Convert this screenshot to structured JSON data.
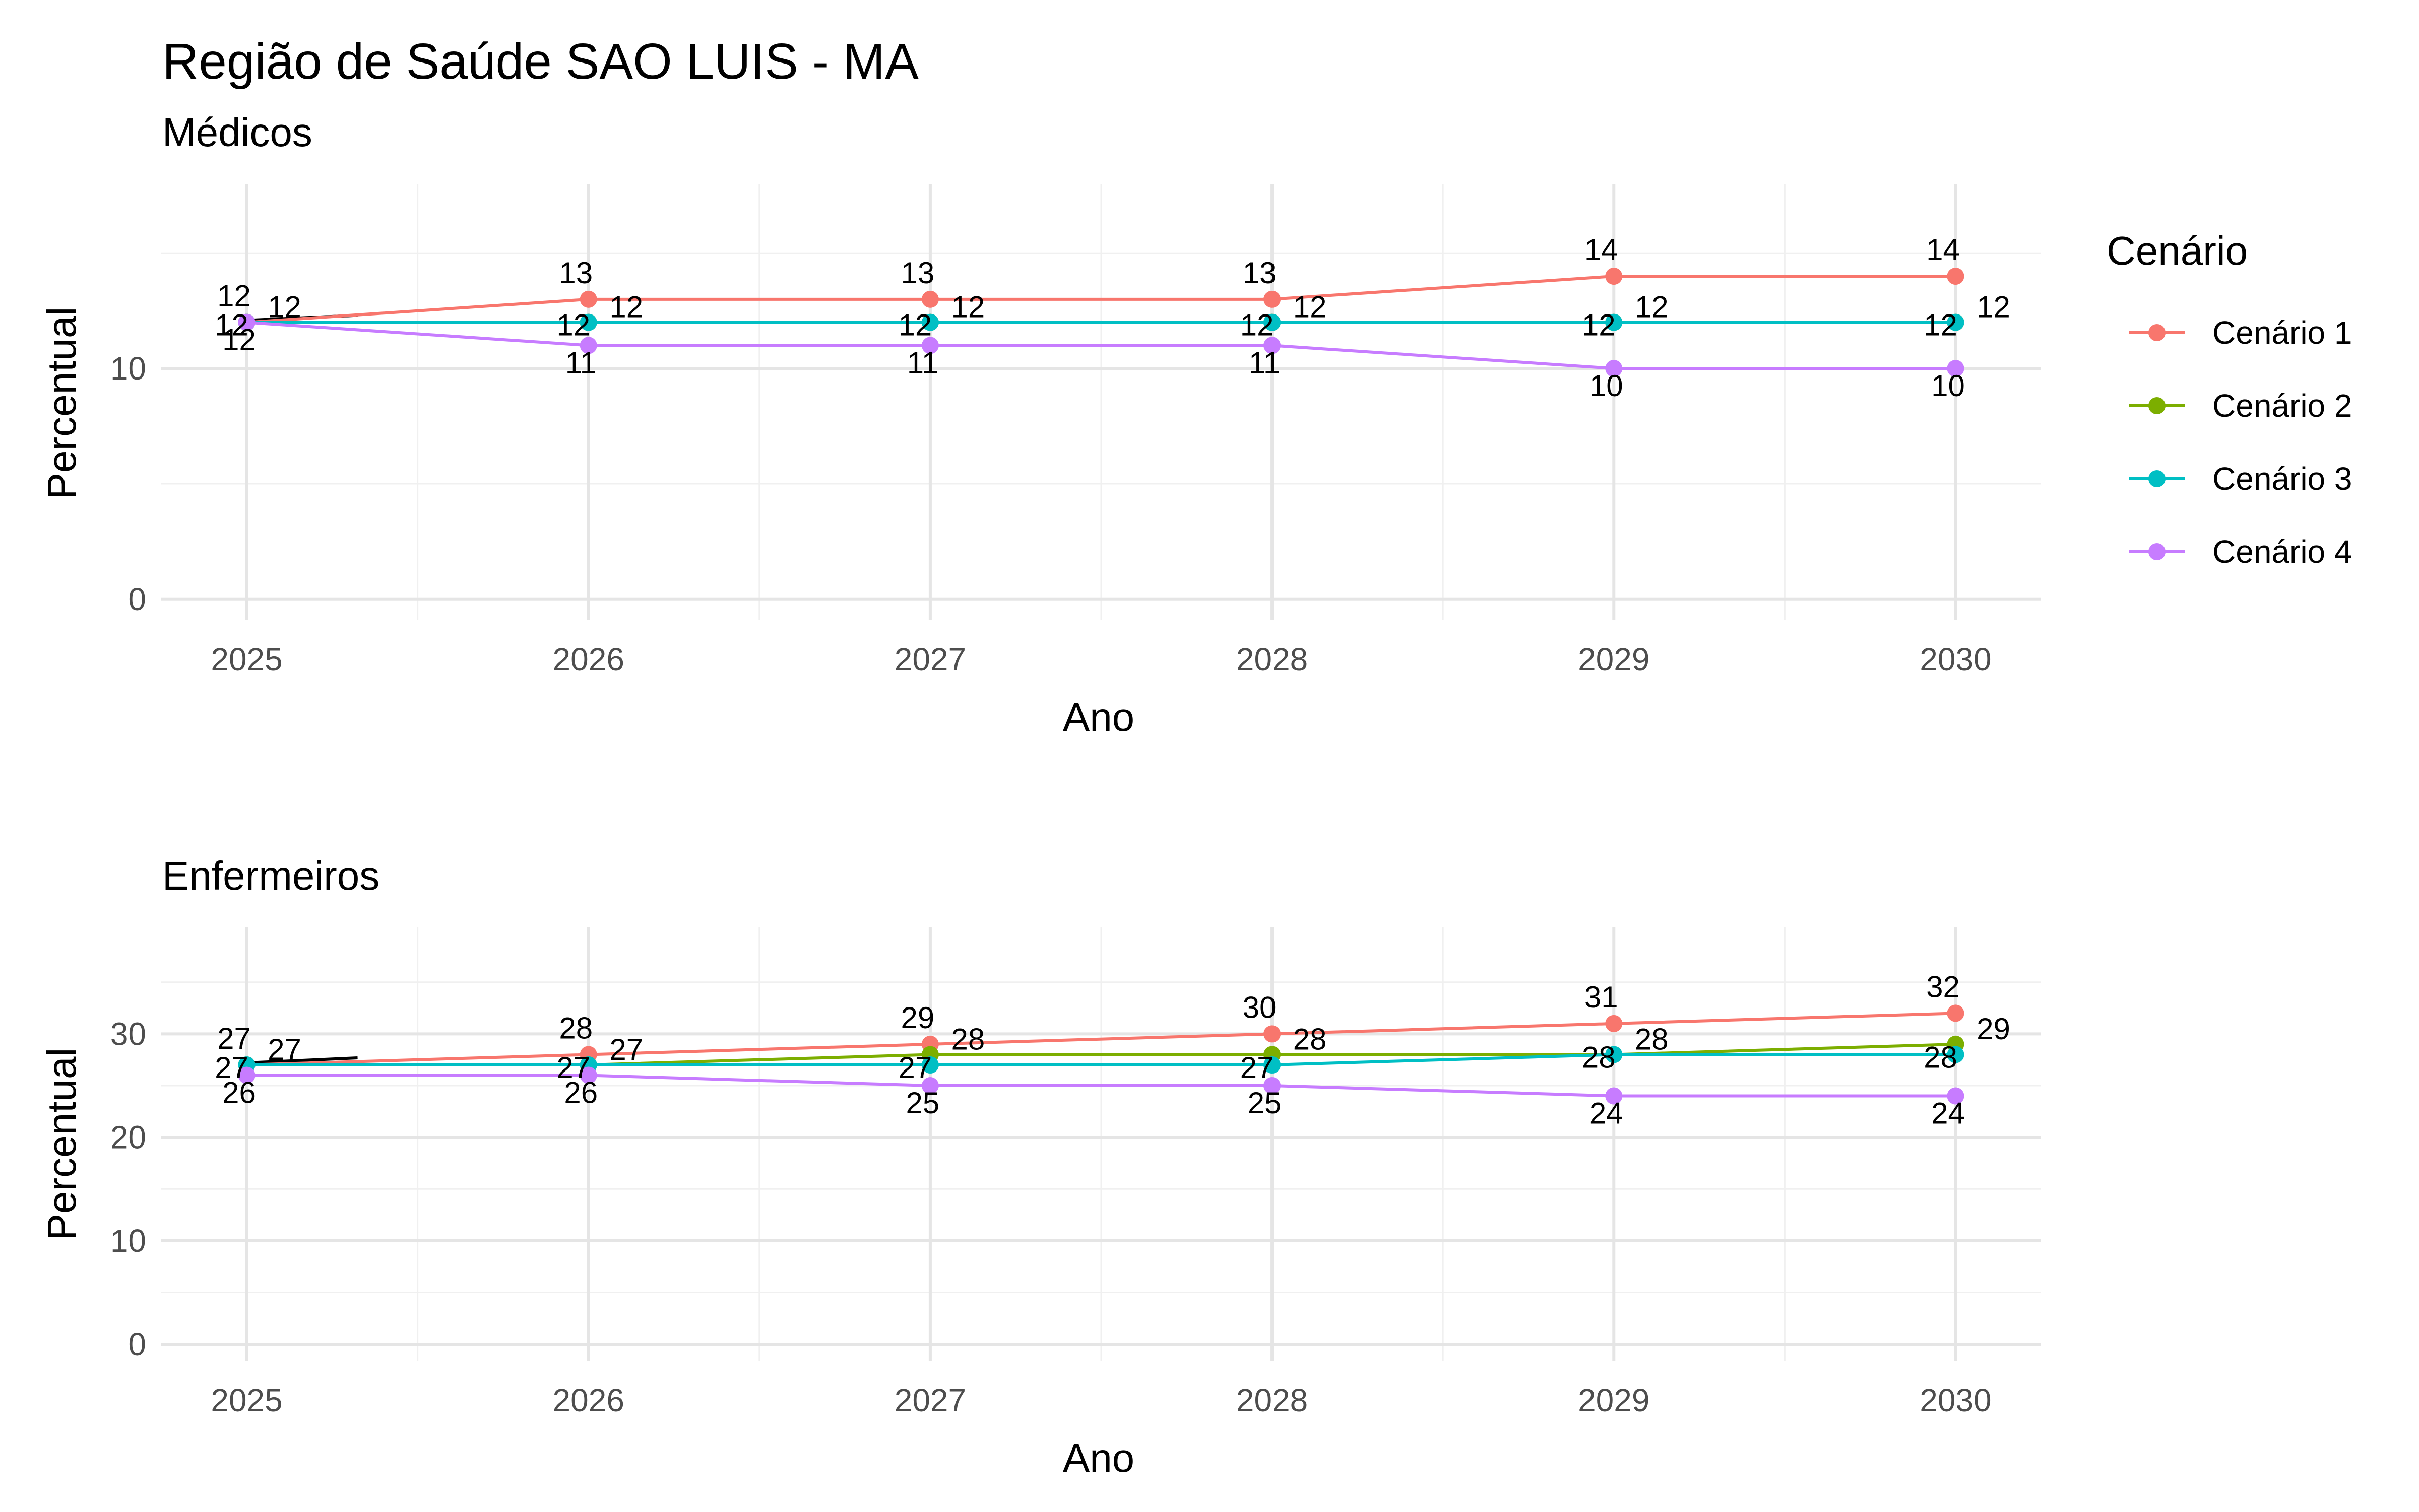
{
  "chart_data": [
    {
      "type": "line",
      "title": "Região de Saúde SAO LUIS - MA",
      "subtitle": "Médicos",
      "xlabel": "Ano",
      "ylabel": "Percentual",
      "x": [
        2025,
        2026,
        2027,
        2028,
        2029,
        2030
      ],
      "xlim": [
        2024.75,
        2030.25
      ],
      "ylim": [
        -0.9,
        18
      ],
      "yticks": [
        0,
        10
      ],
      "grid": true,
      "series": [
        {
          "name": "Cenário 1",
          "color": "#F8766D",
          "values": [
            12,
            13,
            13,
            13,
            14,
            14
          ]
        },
        {
          "name": "Cenário 2",
          "color": "#7CAE00",
          "values": [
            12,
            12,
            12,
            12,
            12,
            12
          ]
        },
        {
          "name": "Cenário 3",
          "color": "#00BFC4",
          "values": [
            12,
            12,
            12,
            12,
            12,
            12
          ]
        },
        {
          "name": "Cenário 4",
          "color": "#C77CFF",
          "values": [
            12,
            11,
            11,
            11,
            10,
            10
          ]
        }
      ],
      "point_labels": [
        {
          "text": "12",
          "x": 2025,
          "y": 12,
          "series": "Cenário 1"
        },
        {
          "text": "12",
          "x": 2025,
          "y": 12,
          "series": "Cenário 2"
        },
        {
          "text": "12",
          "x": 2025,
          "y": 12,
          "series": "Cenário 3"
        },
        {
          "text": "12",
          "x": 2025,
          "y": 12,
          "series": "Cenário 4"
        },
        {
          "text": "13",
          "x": 2026,
          "y": 13,
          "series": "Cenário 1"
        },
        {
          "text": "12",
          "x": 2026,
          "y": 12,
          "series": "Cenário 2"
        },
        {
          "text": "12",
          "x": 2026,
          "y": 12,
          "series": "Cenário 3"
        },
        {
          "text": "11",
          "x": 2026,
          "y": 11,
          "series": "Cenário 4"
        },
        {
          "text": "13",
          "x": 2027,
          "y": 13,
          "series": "Cenário 1"
        },
        {
          "text": "12",
          "x": 2027,
          "y": 12,
          "series": "Cenário 2"
        },
        {
          "text": "12",
          "x": 2027,
          "y": 12,
          "series": "Cenário 3"
        },
        {
          "text": "11",
          "x": 2027,
          "y": 11,
          "series": "Cenário 4"
        },
        {
          "text": "13",
          "x": 2028,
          "y": 13,
          "series": "Cenário 1"
        },
        {
          "text": "12",
          "x": 2028,
          "y": 12,
          "series": "Cenário 2"
        },
        {
          "text": "12",
          "x": 2028,
          "y": 12,
          "series": "Cenário 3"
        },
        {
          "text": "11",
          "x": 2028,
          "y": 11,
          "series": "Cenário 4"
        },
        {
          "text": "14",
          "x": 2029,
          "y": 14,
          "series": "Cenário 1"
        },
        {
          "text": "12",
          "x": 2029,
          "y": 12,
          "series": "Cenário 2"
        },
        {
          "text": "12",
          "x": 2029,
          "y": 12,
          "series": "Cenário 3"
        },
        {
          "text": "10",
          "x": 2029,
          "y": 10,
          "series": "Cenário 4"
        },
        {
          "text": "14",
          "x": 2030,
          "y": 14,
          "series": "Cenário 1"
        },
        {
          "text": "12",
          "x": 2030,
          "y": 12,
          "series": "Cenário 2"
        },
        {
          "text": "12",
          "x": 2030,
          "y": 12,
          "series": "Cenário 3"
        },
        {
          "text": "10",
          "x": 2030,
          "y": 10,
          "series": "Cenário 4"
        }
      ]
    },
    {
      "type": "line",
      "subtitle": "Enfermeiros",
      "xlabel": "Ano",
      "ylabel": "Percentual",
      "x": [
        2025,
        2026,
        2027,
        2028,
        2029,
        2030
      ],
      "xlim": [
        2024.75,
        2030.25
      ],
      "ylim": [
        -1.6,
        40.3
      ],
      "yticks": [
        0,
        10,
        20,
        30
      ],
      "grid": true,
      "series": [
        {
          "name": "Cenário 1",
          "color": "#F8766D",
          "values": [
            27,
            28,
            29,
            30,
            31,
            32
          ]
        },
        {
          "name": "Cenário 2",
          "color": "#7CAE00",
          "values": [
            27,
            27,
            28,
            28,
            28,
            29
          ]
        },
        {
          "name": "Cenário 3",
          "color": "#00BFC4",
          "values": [
            27,
            27,
            27,
            27,
            28,
            28
          ]
        },
        {
          "name": "Cenário 4",
          "color": "#C77CFF",
          "values": [
            26,
            26,
            25,
            25,
            24,
            24
          ]
        }
      ],
      "point_labels": [
        {
          "text": "27",
          "x": 2025,
          "y": 27,
          "series": "Cenário 1"
        },
        {
          "text": "27",
          "x": 2025,
          "y": 27,
          "series": "Cenário 2"
        },
        {
          "text": "27",
          "x": 2025,
          "y": 27,
          "series": "Cenário 3"
        },
        {
          "text": "26",
          "x": 2025,
          "y": 26,
          "series": "Cenário 4"
        },
        {
          "text": "28",
          "x": 2026,
          "y": 28,
          "series": "Cenário 1"
        },
        {
          "text": "27",
          "x": 2026,
          "y": 27,
          "series": "Cenário 2"
        },
        {
          "text": "27",
          "x": 2026,
          "y": 27,
          "series": "Cenário 3"
        },
        {
          "text": "26",
          "x": 2026,
          "y": 26,
          "series": "Cenário 4"
        },
        {
          "text": "29",
          "x": 2027,
          "y": 29,
          "series": "Cenário 1"
        },
        {
          "text": "28",
          "x": 2027,
          "y": 28,
          "series": "Cenário 2"
        },
        {
          "text": "27",
          "x": 2027,
          "y": 27,
          "series": "Cenário 3"
        },
        {
          "text": "25",
          "x": 2027,
          "y": 25,
          "series": "Cenário 4"
        },
        {
          "text": "30",
          "x": 2028,
          "y": 30,
          "series": "Cenário 1"
        },
        {
          "text": "28",
          "x": 2028,
          "y": 28,
          "series": "Cenário 2"
        },
        {
          "text": "27",
          "x": 2028,
          "y": 27,
          "series": "Cenário 3"
        },
        {
          "text": "25",
          "x": 2028,
          "y": 25,
          "series": "Cenário 4"
        },
        {
          "text": "31",
          "x": 2029,
          "y": 31,
          "series": "Cenário 1"
        },
        {
          "text": "28",
          "x": 2029,
          "y": 28,
          "series": "Cenário 2"
        },
        {
          "text": "28",
          "x": 2029,
          "y": 28,
          "series": "Cenário 3"
        },
        {
          "text": "24",
          "x": 2029,
          "y": 24,
          "series": "Cenário 4"
        },
        {
          "text": "32",
          "x": 2030,
          "y": 32,
          "series": "Cenário 1"
        },
        {
          "text": "29",
          "x": 2030,
          "y": 29,
          "series": "Cenário 2"
        },
        {
          "text": "28",
          "x": 2030,
          "y": 28,
          "series": "Cenário 3"
        },
        {
          "text": "24",
          "x": 2030,
          "y": 24,
          "series": "Cenário 4"
        }
      ]
    }
  ],
  "legend": {
    "title": "Cenário",
    "position": "right",
    "items": [
      {
        "label": "Cenário 1",
        "color": "#F8766D"
      },
      {
        "label": "Cenário 2",
        "color": "#7CAE00"
      },
      {
        "label": "Cenário 3",
        "color": "#00BFC4"
      },
      {
        "label": "Cenário 4",
        "color": "#C77CFF"
      }
    ]
  }
}
